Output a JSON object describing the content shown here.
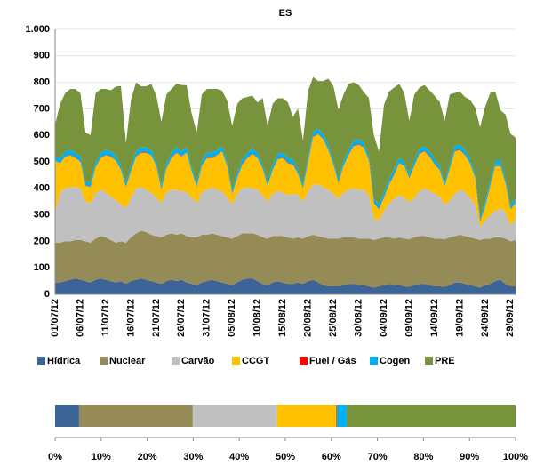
{
  "chart_data": [
    {
      "type": "stacked-area",
      "title": "ES",
      "categories": [
        "01/07/12",
        null,
        null,
        null,
        null,
        "06/07/12",
        null,
        null,
        null,
        null,
        "11/07/12",
        null,
        null,
        null,
        null,
        "16/07/12",
        null,
        null,
        null,
        null,
        "21/07/12",
        null,
        null,
        null,
        null,
        "26/07/12",
        null,
        null,
        null,
        null,
        "31/07/12",
        null,
        null,
        null,
        null,
        "05/08/12",
        null,
        null,
        null,
        null,
        "10/08/12",
        null,
        null,
        null,
        null,
        "15/08/12",
        null,
        null,
        null,
        null,
        "20/08/12",
        null,
        null,
        null,
        null,
        "25/08/12",
        null,
        null,
        null,
        null,
        "30/08/12",
        null,
        null,
        null,
        null,
        "04/09/12",
        null,
        null,
        null,
        null,
        "09/09/12",
        null,
        null,
        null,
        null,
        "14/09/12",
        null,
        null,
        null,
        null,
        "19/09/12",
        null,
        null,
        null,
        null,
        "24/09/12",
        null,
        null,
        null,
        null,
        "29/09/12",
        null
      ],
      "series": [
        {
          "name": "Hídrica",
          "color": "#3c6496",
          "values": [
            45,
            45,
            50,
            55,
            60,
            55,
            50,
            45,
            55,
            60,
            55,
            50,
            45,
            50,
            40,
            50,
            55,
            60,
            55,
            50,
            45,
            40,
            50,
            55,
            50,
            55,
            45,
            40,
            35,
            45,
            50,
            55,
            50,
            45,
            40,
            35,
            45,
            55,
            60,
            60,
            50,
            40,
            35,
            45,
            50,
            45,
            40,
            40,
            45,
            40,
            50,
            55,
            45,
            35,
            30,
            30,
            30,
            35,
            40,
            40,
            35,
            35,
            30,
            25,
            30,
            35,
            40,
            35,
            35,
            30,
            28,
            35,
            40,
            40,
            35,
            30,
            30,
            28,
            35,
            45,
            45,
            40,
            35,
            30,
            25,
            35,
            40,
            50,
            55,
            40,
            30,
            30
          ]
        },
        {
          "name": "Nuclear",
          "color": "#958b57",
          "values": [
            150,
            150,
            150,
            145,
            145,
            150,
            150,
            150,
            155,
            160,
            160,
            155,
            150,
            150,
            155,
            165,
            175,
            180,
            180,
            175,
            175,
            175,
            175,
            175,
            175,
            175,
            175,
            175,
            180,
            180,
            175,
            175,
            175,
            175,
            175,
            175,
            175,
            175,
            170,
            170,
            175,
            175,
            175,
            175,
            170,
            175,
            175,
            170,
            170,
            170,
            170,
            170,
            175,
            180,
            180,
            180,
            180,
            180,
            175,
            175,
            175,
            175,
            180,
            180,
            180,
            180,
            175,
            175,
            180,
            180,
            180,
            180,
            180,
            180,
            180,
            180,
            180,
            180,
            180,
            175,
            180,
            180,
            180,
            180,
            180,
            175,
            170,
            165,
            160,
            170,
            170,
            175
          ]
        },
        {
          "name": "Carvão",
          "color": "#c0c0c0",
          "values": [
            110,
            190,
            200,
            205,
            200,
            195,
            150,
            150,
            170,
            175,
            170,
            165,
            160,
            140,
            130,
            150,
            170,
            165,
            160,
            160,
            145,
            130,
            160,
            165,
            170,
            160,
            165,
            150,
            130,
            160,
            170,
            175,
            170,
            170,
            150,
            130,
            160,
            170,
            175,
            170,
            170,
            160,
            140,
            160,
            170,
            165,
            160,
            170,
            160,
            140,
            170,
            190,
            195,
            190,
            185,
            170,
            150,
            170,
            180,
            185,
            185,
            185,
            165,
            80,
            70,
            100,
            130,
            150,
            160,
            155,
            140,
            150,
            170,
            180,
            175,
            170,
            160,
            130,
            140,
            160,
            170,
            165,
            150,
            130,
            50,
            70,
            90,
            100,
            110,
            100,
            60,
            80
          ]
        },
        {
          "name": "CCGT",
          "color": "#ffc000",
          "values": [
            200,
            110,
            120,
            120,
            110,
            100,
            60,
            60,
            100,
            120,
            140,
            150,
            150,
            130,
            80,
            100,
            120,
            130,
            140,
            140,
            120,
            50,
            90,
            120,
            140,
            130,
            150,
            100,
            60,
            100,
            120,
            110,
            130,
            150,
            120,
            40,
            60,
            90,
            110,
            130,
            120,
            100,
            60,
            90,
            120,
            130,
            120,
            110,
            80,
            50,
            110,
            180,
            190,
            180,
            150,
            110,
            60,
            100,
            130,
            160,
            170,
            160,
            130,
            60,
            40,
            50,
            70,
            90,
            120,
            120,
            90,
            120,
            140,
            140,
            130,
            110,
            100,
            70,
            120,
            160,
            150,
            140,
            130,
            100,
            20,
            50,
            110,
            170,
            160,
            110,
            60,
            60
          ]
        },
        {
          "name": "Fuel / Gás",
          "color": "#ff0000",
          "values": [
            1,
            1,
            2,
            2,
            2,
            1,
            1,
            1,
            1,
            2,
            2,
            2,
            1,
            1,
            1,
            1,
            2,
            2,
            2,
            1,
            1,
            1,
            1,
            2,
            2,
            2,
            1,
            1,
            1,
            1,
            2,
            2,
            2,
            1,
            1,
            1,
            1,
            2,
            2,
            2,
            1,
            1,
            1,
            1,
            2,
            2,
            2,
            1,
            1,
            1,
            1,
            2,
            2,
            2,
            1,
            1,
            1,
            1,
            2,
            2,
            2,
            1,
            1,
            1,
            1,
            2,
            2,
            2,
            1,
            1,
            1,
            1,
            2,
            2,
            2,
            1,
            1,
            1,
            1,
            2,
            2,
            2,
            1,
            1,
            1,
            1,
            2,
            2,
            2,
            1,
            1,
            1
          ]
        },
        {
          "name": "Cogen",
          "color": "#00b0f0",
          "values": [
            15,
            18,
            18,
            18,
            18,
            18,
            15,
            15,
            18,
            18,
            18,
            18,
            18,
            15,
            15,
            18,
            18,
            18,
            18,
            18,
            15,
            15,
            18,
            18,
            18,
            18,
            18,
            15,
            15,
            18,
            18,
            18,
            18,
            18,
            15,
            15,
            18,
            18,
            18,
            18,
            18,
            15,
            15,
            18,
            18,
            18,
            18,
            18,
            15,
            15,
            18,
            18,
            18,
            18,
            18,
            15,
            15,
            18,
            18,
            18,
            18,
            18,
            15,
            15,
            18,
            18,
            18,
            18,
            18,
            15,
            15,
            18,
            18,
            18,
            18,
            18,
            15,
            15,
            18,
            18,
            18,
            18,
            18,
            15,
            15,
            18,
            18,
            18,
            18,
            18,
            15,
            15
          ]
        },
        {
          "name": "PRE",
          "color": "#77933c",
          "values": [
            120,
            205,
            220,
            230,
            240,
            240,
            185,
            180,
            260,
            240,
            230,
            230,
            260,
            300,
            150,
            250,
            260,
            230,
            230,
            250,
            250,
            240,
            260,
            240,
            240,
            250,
            235,
            200,
            190,
            250,
            240,
            240,
            230,
            210,
            230,
            240,
            260,
            230,
            210,
            200,
            190,
            250,
            210,
            230,
            210,
            205,
            210,
            160,
            230,
            165,
            250,
            205,
            180,
            200,
            250,
            280,
            260,
            250,
            250,
            220,
            205,
            190,
            220,
            240,
            200,
            330,
            330,
            310,
            280,
            260,
            200,
            250,
            230,
            230,
            230,
            240,
            240,
            230,
            260,
            200,
            200,
            200,
            220,
            250,
            340,
            360,
            330,
            260,
            190,
            240,
            270,
            230
          ]
        }
      ],
      "ylim": [
        0,
        1000
      ],
      "yticks": [
        0,
        100,
        200,
        300,
        400,
        500,
        600,
        700,
        800,
        900,
        {
          "value": 1000,
          "label": "1.000"
        }
      ],
      "grid": true,
      "legend": "bottom"
    },
    {
      "type": "stacked-bar-100",
      "values": [
        5.2,
        24.7,
        18.3,
        12.9,
        0.1,
        2.1,
        36.7
      ],
      "xlim": [
        0,
        100
      ],
      "xticks": [
        {
          "value": 0,
          "label": "0%"
        },
        {
          "value": 10,
          "label": "10%"
        },
        {
          "value": 20,
          "label": "20%"
        },
        {
          "value": 30,
          "label": "30%"
        },
        {
          "value": 40,
          "label": "40%"
        },
        {
          "value": 50,
          "label": "50%"
        },
        {
          "value": 60,
          "label": "60%"
        },
        {
          "value": 70,
          "label": "70%"
        },
        {
          "value": 80,
          "label": "80%"
        },
        {
          "value": 90,
          "label": "90%"
        },
        {
          "value": 100,
          "label": "100%"
        }
      ]
    }
  ]
}
